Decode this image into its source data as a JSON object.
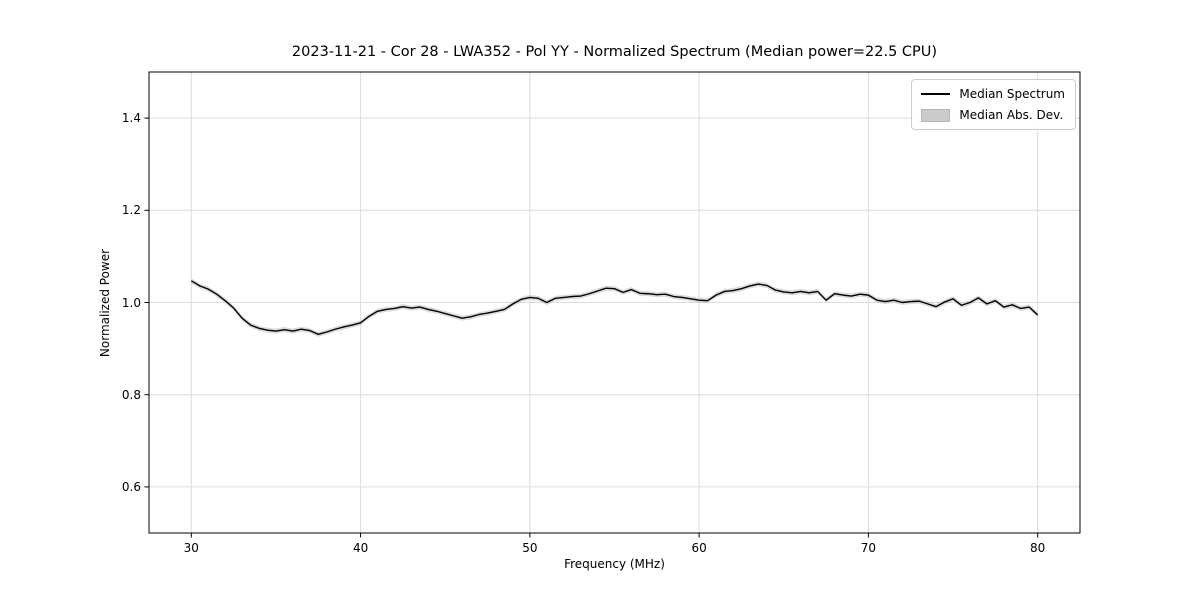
{
  "chart_data": {
    "type": "line",
    "title": "2023-11-21 - Cor 28 - LWA352 - Pol YY - Normalized Spectrum (Median power=22.5 CPU)",
    "title_parts": {
      "date": "2023-11-21",
      "correlator": "Cor 28",
      "station": "LWA352",
      "polarization": "Pol YY",
      "median_power": "22.5 CPU"
    },
    "xlabel": "Frequency (MHz)",
    "ylabel": "Normalized Power",
    "xlim": [
      27.5,
      82.5
    ],
    "ylim": [
      0.5,
      1.5
    ],
    "xticks": [
      30,
      40,
      50,
      60,
      70,
      80
    ],
    "xticklabels": [
      "30",
      "40",
      "50",
      "60",
      "70",
      "80"
    ],
    "yticks": [
      0.6,
      0.8,
      1.0,
      1.2,
      1.4
    ],
    "yticklabels": [
      "0.6",
      "0.8",
      "1.0",
      "1.2",
      "1.4"
    ],
    "grid": true,
    "legend_position": "upper right",
    "legend": [
      {
        "label": "Median Spectrum",
        "type": "line",
        "color": "#000000"
      },
      {
        "label": "Median Abs. Dev.",
        "type": "patch",
        "color": "#cbcbcb"
      }
    ],
    "series": [
      {
        "name": "Median Spectrum",
        "color": "#000000",
        "x": [
          30,
          30.5,
          31,
          31.5,
          32,
          32.5,
          33,
          33.5,
          34,
          34.5,
          35,
          35.5,
          36,
          36.5,
          37,
          37.5,
          38,
          38.5,
          39,
          39.5,
          40,
          40.5,
          41,
          41.5,
          42,
          42.5,
          43,
          43.5,
          44,
          44.5,
          45,
          45.5,
          46,
          46.5,
          47,
          47.5,
          48,
          48.5,
          49,
          49.5,
          50,
          50.5,
          51,
          51.5,
          52,
          52.5,
          53,
          53.5,
          54,
          54.5,
          55,
          55.5,
          56,
          56.5,
          57,
          57.5,
          58,
          58.5,
          59,
          59.5,
          60,
          60.5,
          61,
          61.5,
          62,
          62.5,
          63,
          63.5,
          64,
          64.5,
          65,
          65.5,
          66,
          66.5,
          67,
          67.5,
          68,
          68.5,
          69,
          69.5,
          70,
          70.5,
          71,
          71.5,
          72,
          72.5,
          73,
          73.5,
          74,
          74.5,
          75,
          75.5,
          76,
          76.5,
          77,
          77.5,
          78,
          78.5,
          79,
          79.5,
          80
        ],
        "y": [
          1.047,
          1.036,
          1.029,
          1.018,
          1.004,
          0.988,
          0.966,
          0.951,
          0.944,
          0.94,
          0.938,
          0.941,
          0.938,
          0.942,
          0.939,
          0.931,
          0.936,
          0.942,
          0.947,
          0.951,
          0.956,
          0.97,
          0.981,
          0.985,
          0.987,
          0.991,
          0.988,
          0.99,
          0.985,
          0.981,
          0.976,
          0.971,
          0.966,
          0.969,
          0.974,
          0.977,
          0.981,
          0.985,
          0.997,
          1.007,
          1.011,
          1.009,
          1.0,
          1.009,
          1.011,
          1.013,
          1.014,
          1.019,
          1.025,
          1.031,
          1.03,
          1.022,
          1.028,
          1.02,
          1.019,
          1.017,
          1.018,
          1.013,
          1.011,
          1.008,
          1.005,
          1.004,
          1.016,
          1.024,
          1.026,
          1.03,
          1.036,
          1.04,
          1.037,
          1.027,
          1.023,
          1.021,
          1.024,
          1.021,
          1.024,
          1.005,
          1.019,
          1.016,
          1.014,
          1.018,
          1.016,
          1.005,
          1.002,
          1.005,
          1.0,
          1.002,
          1.003,
          0.997,
          0.991,
          1.001,
          1.008,
          0.994,
          1.0,
          1.01,
          0.997,
          1.004,
          0.99,
          0.995,
          0.987,
          0.99,
          0.973
        ]
      }
    ],
    "band": {
      "name": "Median Abs. Dev.",
      "color": "#bdbdbd",
      "opacity": 0.55,
      "halfwidth": 0.0055
    }
  },
  "colors": {
    "background": "#ffffff",
    "spine": "#000000",
    "grid": "#dcdcdc",
    "tick": "#000000",
    "legend_border": "#cccccc"
  }
}
